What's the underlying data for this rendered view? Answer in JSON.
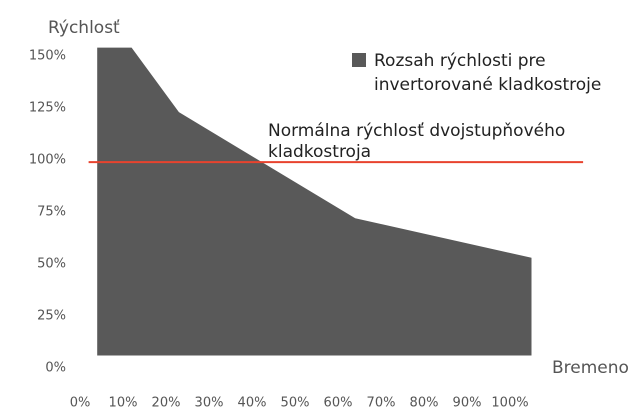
{
  "chart_data": {
    "type": "range_area",
    "y_axis_title": "Rýchlosť",
    "x_axis_title": "Bremeno",
    "x": [
      4,
      12,
      23,
      64,
      105
    ],
    "series": [
      {
        "name": [
          "Rozsah rýchlosti pre",
          "invertorované kladkostroje"
        ],
        "color": "#595959",
        "high": [
          154,
          154,
          123,
          72,
          53
        ],
        "low": [
          6,
          6,
          6,
          6,
          6
        ]
      }
    ],
    "reference_line": {
      "label": [
        "Normálna rýchlosť dvojstupňového",
        "kladkostroja"
      ],
      "value": 99,
      "x": [
        2,
        117
      ],
      "color": "#e8432e"
    },
    "xlim": [
      0,
      100
    ],
    "ylim": [
      0,
      150
    ],
    "xticks": [
      {
        "value": 0,
        "label": "0%"
      },
      {
        "value": 10,
        "label": "10%"
      },
      {
        "value": 20,
        "label": "20%"
      },
      {
        "value": 30,
        "label": "30%"
      },
      {
        "value": 40,
        "label": "40%"
      },
      {
        "value": 50,
        "label": "50%"
      },
      {
        "value": 60,
        "label": "60%"
      },
      {
        "value": 70,
        "label": "70%"
      },
      {
        "value": 80,
        "label": "80%"
      },
      {
        "value": 90,
        "label": "90%"
      },
      {
        "value": 100,
        "label": "100%"
      }
    ],
    "yticks": [
      {
        "value": 0,
        "label": "0%"
      },
      {
        "value": 25,
        "label": "25%"
      },
      {
        "value": 50,
        "label": "50%"
      },
      {
        "value": 75,
        "label": "75%"
      },
      {
        "value": 100,
        "label": "100%"
      },
      {
        "value": 125,
        "label": "125%"
      },
      {
        "value": 150,
        "label": "150%"
      }
    ],
    "legend": "top-right"
  }
}
